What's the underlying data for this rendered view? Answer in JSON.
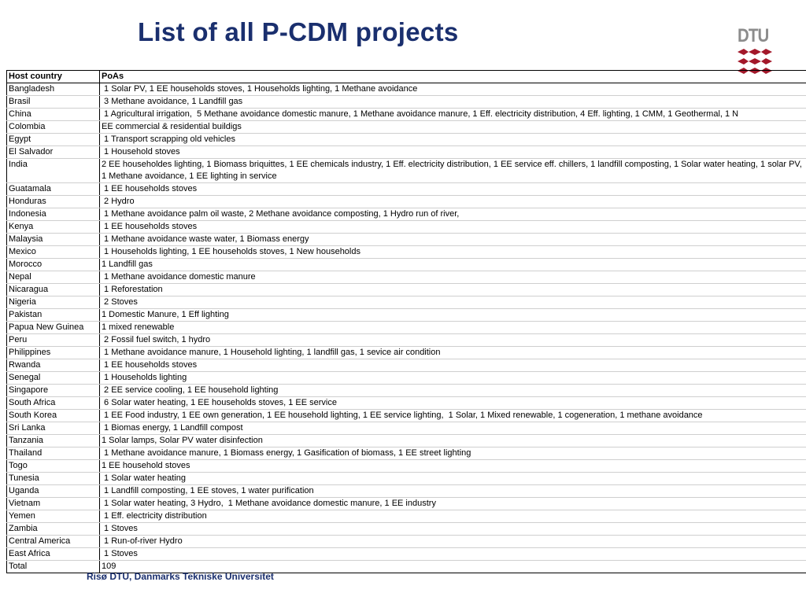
{
  "title": "List of all P-CDM projects",
  "logo": {
    "text": "DTU"
  },
  "table": {
    "headers": [
      "Host country",
      "PoAs"
    ],
    "rows": [
      {
        "country": "Bangladesh",
        "poas": " 1 Solar PV, 1 EE households stoves, 1 Households lighting, 1 Methane avoidance"
      },
      {
        "country": "Brasil",
        "poas": " 3 Methane avoidance, 1 Landfill gas"
      },
      {
        "country": "China",
        "poas": " 1 Agricultural irrigation,  5 Methane avoidance domestic manure, 1 Methane avoidance manure, 1 Eff. electricity distribution, 4 Eff. lighting, 1 CMM, 1 Geothermal, 1 N"
      },
      {
        "country": "Colombia",
        "poas": "EE commercial & residential buildigs"
      },
      {
        "country": "Egypt",
        "poas": " 1 Transport scrapping old vehicles"
      },
      {
        "country": "El Salvador",
        "poas": " 1 Household stoves"
      },
      {
        "country": "India",
        "poas": " 2 EE householdes lighting, 1 Biomass briquittes, 1 EE chemicals industry,  1 Eff. electricity distribution, 1 EE service eff. chillers, 1 landfill composting, 1 Solar water heating, 1 solar PV, 1 Methane avoidance, 1 EE lighting in service",
        "wrap": true
      },
      {
        "country": "Guatamala",
        "poas": " 1 EE households stoves"
      },
      {
        "country": "Honduras",
        "poas": " 2 Hydro"
      },
      {
        "country": "Indonesia",
        "poas": " 1 Methane avoidance palm oil waste, 2 Methane avoidance composting, 1 Hydro run of river,"
      },
      {
        "country": "Kenya",
        "poas": " 1 EE households stoves"
      },
      {
        "country": "Malaysia",
        "poas": " 1 Methane avoidance waste water, 1 Biomass energy"
      },
      {
        "country": "Mexico",
        "poas": " 1 Households lighting, 1 EE households stoves, 1 New households"
      },
      {
        "country": "Morocco",
        "poas": "1 Landfill gas"
      },
      {
        "country": "Nepal",
        "poas": " 1 Methane avoidance domestic manure"
      },
      {
        "country": "Nicaragua",
        "poas": " 1 Reforestation"
      },
      {
        "country": "Nigeria",
        "poas": " 2 Stoves"
      },
      {
        "country": "Pakistan",
        "poas": "1 Domestic Manure, 1 Eff lighting"
      },
      {
        "country": "Papua New Guinea",
        "poas": "1 mixed renewable"
      },
      {
        "country": "Peru",
        "poas": " 2 Fossil fuel switch, 1 hydro"
      },
      {
        "country": "Philippines",
        "poas": " 1 Methane avoidance manure, 1 Household lighting, 1 landfill gas, 1 sevice air condition"
      },
      {
        "country": "Rwanda",
        "poas": " 1 EE households stoves"
      },
      {
        "country": "Senegal",
        "poas": " 1 Households lighting"
      },
      {
        "country": "Singapore",
        "poas": " 2 EE service cooling, 1 EE household lighting"
      },
      {
        "country": "South Africa",
        "poas": " 6 Solar water heating, 1 EE households stoves, 1 EE service"
      },
      {
        "country": "South Korea",
        "poas": " 1 EE Food industry, 1 EE own generation, 1 EE household lighting, 1 EE service lighting,  1 Solar, 1 Mixed renewable, 1 cogeneration, 1 methane avoidance"
      },
      {
        "country": "Sri Lanka",
        "poas": " 1 Biomas energy, 1 Landfill compost"
      },
      {
        "country": "Tanzania",
        "poas": "1 Solar lamps, Solar PV water disinfection"
      },
      {
        "country": "Thailand",
        "poas": " 1 Methane avoidance manure, 1 Biomass energy, 1 Gasification of biomass, 1 EE street lighting"
      },
      {
        "country": "Togo",
        "poas": "1 EE household stoves"
      },
      {
        "country": "Tunesia",
        "poas": " 1 Solar water heating"
      },
      {
        "country": "Uganda",
        "poas": " 1 Landfill composting, 1 EE stoves, 1 water purification"
      },
      {
        "country": "Vietnam",
        "poas": " 1 Solar water heating, 3 Hydro,  1 Methane avoidance domestic manure, 1 EE industry"
      },
      {
        "country": "Yemen",
        "poas": " 1 Eff. electricity distribution"
      },
      {
        "country": "Zambia",
        "poas": " 1 Stoves"
      },
      {
        "country": "Central America",
        "poas": " 1 Run-of-river Hydro"
      },
      {
        "country": "East Africa",
        "poas": " 1 Stoves"
      }
    ],
    "total": {
      "label": "Total",
      "value": "109"
    }
  },
  "footer": "Risø DTU, Danmarks Tekniske Universitet"
}
